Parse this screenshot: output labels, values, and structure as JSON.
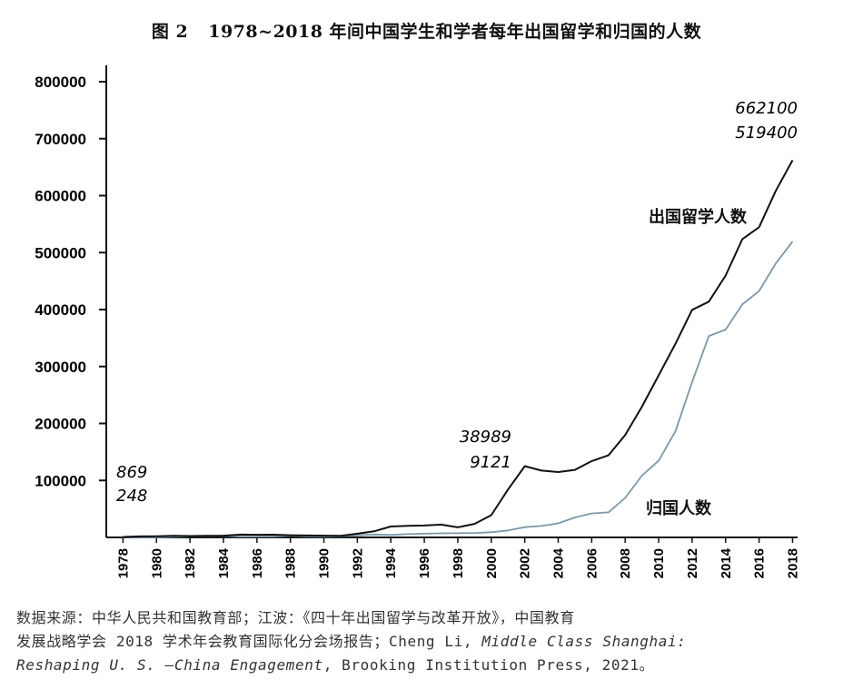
{
  "figure": {
    "label": "图 2",
    "title": "1978~2018 年间中国学生和学者每年出国留学和归国的人数"
  },
  "colors": {
    "outbound": "#111111",
    "returnees": "#7b97a8",
    "axis": "#111111"
  },
  "chart_data": {
    "type": "line",
    "title": "1978~2018 年间中国学生和学者每年出国留学和归国的人数",
    "xlabel": "",
    "ylabel": "",
    "ylim": [
      0,
      800000
    ],
    "yticks": [
      100000,
      200000,
      300000,
      400000,
      500000,
      600000,
      700000,
      800000
    ],
    "ytick_labels": [
      "100000",
      "200000",
      "300000",
      "400000",
      "500000",
      "600000",
      "700000",
      "800000"
    ],
    "xlim": [
      1977,
      2018.3
    ],
    "xticks": [
      1978,
      1980,
      1982,
      1984,
      1986,
      1988,
      1990,
      1992,
      1994,
      1996,
      1998,
      2000,
      2002,
      2004,
      2006,
      2008,
      2010,
      2012,
      2014,
      2016,
      2018
    ],
    "xtick_labels": [
      "1978",
      "1980",
      "1982",
      "1984",
      "1986",
      "1988",
      "1990",
      "1992",
      "1994",
      "1996",
      "1998",
      "2000",
      "2002",
      "2004",
      "2006",
      "2008",
      "2010",
      "2012",
      "2014",
      "2016",
      "2018"
    ],
    "grid": false,
    "x": [
      1978,
      1979,
      1980,
      1981,
      1982,
      1983,
      1984,
      1985,
      1986,
      1987,
      1988,
      1989,
      1990,
      1991,
      1992,
      1993,
      1994,
      1995,
      1996,
      1997,
      1998,
      1999,
      2000,
      2001,
      2002,
      2003,
      2004,
      2005,
      2006,
      2007,
      2008,
      2009,
      2010,
      2011,
      2012,
      2013,
      2014,
      2015,
      2016,
      2017,
      2018
    ],
    "series": [
      {
        "name": "出国留学人数",
        "key": "outbound",
        "values": [
          869,
          1777,
          2124,
          2922,
          2326,
          2633,
          3073,
          4888,
          4676,
          4703,
          3786,
          3329,
          2950,
          2900,
          6540,
          10742,
          19071,
          20381,
          20905,
          22410,
          17622,
          23749,
          38989,
          83973,
          125179,
          117307,
          114682,
          118515,
          134000,
          144000,
          179800,
          229300,
          284700,
          339700,
          399600,
          413900,
          459800,
          523700,
          544500,
          608400,
          662100
        ]
      },
      {
        "name": "归国人数",
        "key": "returnees",
        "values": [
          248,
          231,
          162,
          1143,
          2116,
          2303,
          2920,
          1424,
          1388,
          1605,
          3000,
          1753,
          1593,
          2069,
          3611,
          5128,
          4230,
          5750,
          6570,
          7130,
          7379,
          7748,
          9121,
          12243,
          17945,
          20152,
          24726,
          34987,
          42000,
          44000,
          69300,
          108300,
          134800,
          186200,
          272900,
          353500,
          364800,
          409100,
          432500,
          480900,
          519400
        ]
      }
    ],
    "annotations": [
      {
        "year": 1978,
        "outbound_label": "869",
        "returnees_label": "248"
      },
      {
        "year": 2000,
        "outbound_label": "38989",
        "returnees_label": "9121"
      },
      {
        "year": 2018,
        "outbound_label": "662100",
        "returnees_label": "519400"
      }
    ]
  },
  "source": {
    "line1": "数据来源：中华人民共和国教育部；江波：《四十年出国留学与改革开放》，中国教育",
    "line2_a": "发展战略学会 2018 学术年会教育国际化分会场报告；Cheng Li, ",
    "line2_italic": "Middle Class Shanghai:",
    "line3_italic": "Reshaping U. S. —China Engagement",
    "line3_b": ", Brooking Institution Press, 2021。"
  }
}
